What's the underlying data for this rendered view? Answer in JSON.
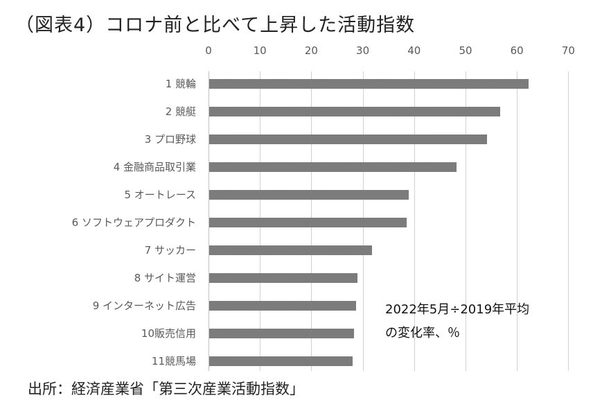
{
  "title": "（図表4）コロナ前と比べて上昇した活動指数",
  "chart_data": {
    "type": "bar",
    "orientation": "horizontal",
    "title": "（図表4）コロナ前と比べて上昇した活動指数",
    "xlabel": "",
    "ylabel": "",
    "xlim": [
      0,
      70
    ],
    "x_ticks": [
      "0",
      "10",
      "20",
      "30",
      "40",
      "50",
      "60",
      "70"
    ],
    "grid": true,
    "axis_position": "top",
    "categories": [
      "1 競輪",
      "2 競艇",
      "3 プロ野球",
      "4 金融商品取引業",
      "5 オートレース",
      "6 ソフトウェアプロダクト",
      "7 サッカー",
      "8 サイト運営",
      "9 インターネット広告",
      "10販売信用",
      "11競馬場"
    ],
    "values": [
      62.1,
      56.6,
      54.1,
      48.1,
      38.8,
      38.4,
      31.7,
      28.9,
      28.6,
      28.2,
      27.9
    ],
    "series": [
      {
        "name": "2022年5月÷2019年平均の変化率、%",
        "color": "#7f7f7f",
        "values": [
          62.1,
          56.6,
          54.1,
          48.1,
          38.8,
          38.4,
          31.7,
          28.9,
          28.6,
          28.2,
          27.9
        ]
      }
    ],
    "annotations": [
      "2022年5月÷2019年平均",
      "の変化率、％"
    ]
  },
  "note": {
    "line1": "2022年5月÷2019年平均",
    "line2": "の変化率、％"
  },
  "source": "出所：経済産業省「第三次産業活動指数」"
}
